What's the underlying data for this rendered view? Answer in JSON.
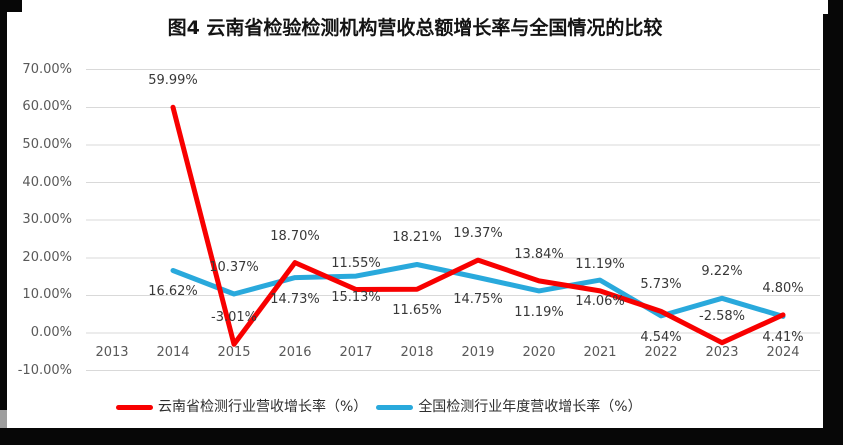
{
  "title": "图4 云南省检验检测机构营收总额增长率与全国情况的比较",
  "chart_data": {
    "type": "line",
    "title": "图4 云南省检验检测机构营收总额增长率与全国情况的比较",
    "x_categories": [
      "2013",
      "2014",
      "2015",
      "2016",
      "2017",
      "2018",
      "2019",
      "2020",
      "2021",
      "2022",
      "2023",
      "2024"
    ],
    "y_tick_labels": [
      "70.00%",
      "60.00%",
      "50.00%",
      "40.00%",
      "30.00%",
      "20.00%",
      "10.00%",
      "0.00%",
      "-10.00%"
    ],
    "ylim": [
      -10,
      70
    ],
    "grid": "horizontal",
    "gridline_color": "#d9d9d9",
    "legend_position": "bottom",
    "series": [
      {
        "name": "云南省检测行业营收增长率（%）",
        "color": "#f80000",
        "values": [
          null,
          59.99,
          -3.01,
          18.7,
          11.55,
          11.65,
          19.37,
          13.84,
          11.19,
          5.73,
          -2.58,
          4.8
        ],
        "labels": [
          "",
          "59.99%",
          "-3.01%",
          "18.70%",
          "11.55%",
          "11.65%",
          "19.37%",
          "13.84%",
          "11.19%",
          "5.73%",
          "-2.58%",
          "4.80%"
        ],
        "label_side": [
          null,
          "above",
          "above",
          "above",
          "above",
          "below",
          "above",
          "above",
          "above",
          "above",
          "above",
          "above"
        ]
      },
      {
        "name": "全国检测行业年度营收增长率（%）",
        "color": "#29a9dc",
        "values": [
          null,
          16.62,
          10.37,
          14.73,
          15.13,
          18.21,
          14.75,
          11.19,
          14.06,
          4.54,
          9.22,
          4.41
        ],
        "labels": [
          "",
          "16.62%",
          "10.37%",
          "14.73%",
          "15.13%",
          "18.21%",
          "14.75%",
          "11.19%",
          "14.06%",
          "4.54%",
          "9.22%",
          "4.41%"
        ],
        "label_side": [
          null,
          "below",
          "above",
          "below",
          "below",
          "above",
          "below",
          "below",
          "below",
          "below",
          "above",
          "below"
        ]
      }
    ]
  }
}
